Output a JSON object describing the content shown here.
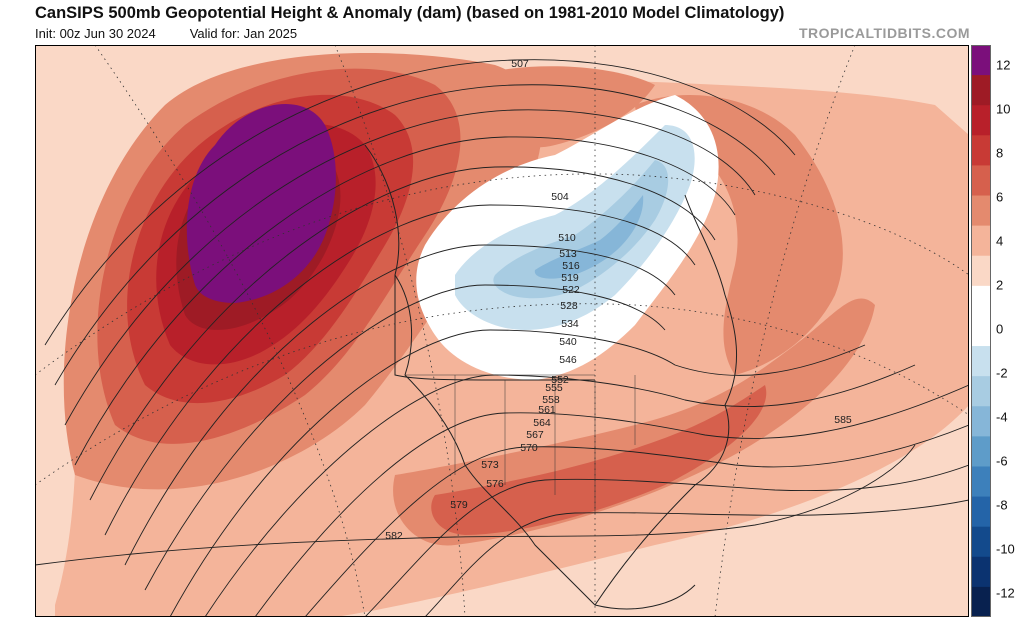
{
  "header": {
    "title": "CanSIPS 500mb Geopotential Height & Anomaly (dam) (based on 1981-2010 Model Climatology)",
    "init": "Init: 00z Jun 30 2024",
    "valid": "Valid for: Jan 2025",
    "credit": "TROPICALTIDBITS.COM"
  },
  "map": {
    "type": "contour-map",
    "variable": "500mb geopotential height (dam) with anomaly shading",
    "contour_labels": [
      "507",
      "504",
      "510",
      "513",
      "516",
      "519",
      "522",
      "528",
      "534",
      "540",
      "546",
      "552",
      "555",
      "558",
      "561",
      "564",
      "567",
      "570",
      "573",
      "576",
      "579",
      "582",
      "585"
    ],
    "features": {
      "positive_anomaly_center": "Gulf of Alaska / NE Pacific, > +12 dam",
      "negative_anomaly_center": "Hudson Bay / eastern Canada, about -4 dam"
    }
  },
  "colorbar": {
    "labels": [
      "12",
      "10",
      "8",
      "6",
      "4",
      "2",
      "0",
      "-2",
      "-4",
      "-6",
      "-8",
      "-10",
      "-12"
    ],
    "colors": [
      "#7b0f7b",
      "#9e1b25",
      "#b8202a",
      "#c83a35",
      "#d6604d",
      "#e48a6e",
      "#f4b49a",
      "#fad8c6",
      "#ffffff",
      "#ffffff",
      "#c8e0ee",
      "#a8cce2",
      "#86b6d8",
      "#5e9cc9",
      "#3d80bb",
      "#2464a8",
      "#134a8c",
      "#0b3370",
      "#08214f"
    ]
  }
}
